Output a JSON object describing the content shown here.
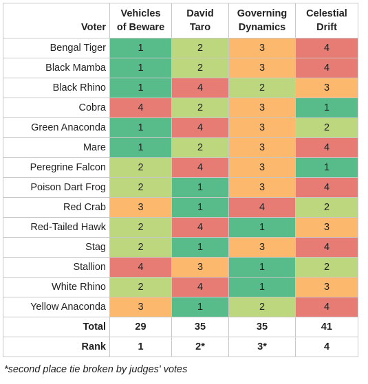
{
  "header": {
    "voter": "Voter",
    "candidates": [
      [
        "Vehicles",
        "of Beware"
      ],
      [
        "David",
        "Taro"
      ],
      [
        "Governing",
        "Dynamics"
      ],
      [
        "Celestial",
        "Drift"
      ]
    ]
  },
  "rows": [
    {
      "voter": "Bengal Tiger",
      "scores": [
        1,
        2,
        3,
        4
      ]
    },
    {
      "voter": "Black Mamba",
      "scores": [
        1,
        2,
        3,
        4
      ]
    },
    {
      "voter": "Black Rhino",
      "scores": [
        1,
        4,
        2,
        3
      ]
    },
    {
      "voter": "Cobra",
      "scores": [
        4,
        2,
        3,
        1
      ]
    },
    {
      "voter": "Green Anaconda",
      "scores": [
        1,
        4,
        3,
        2
      ]
    },
    {
      "voter": "Mare",
      "scores": [
        1,
        2,
        3,
        4
      ]
    },
    {
      "voter": "Peregrine Falcon",
      "scores": [
        2,
        4,
        3,
        1
      ]
    },
    {
      "voter": "Poison Dart Frog",
      "scores": [
        2,
        1,
        3,
        4
      ]
    },
    {
      "voter": "Red Crab",
      "scores": [
        3,
        1,
        4,
        2
      ]
    },
    {
      "voter": "Red-Tailed Hawk",
      "scores": [
        2,
        4,
        1,
        3
      ]
    },
    {
      "voter": "Stag",
      "scores": [
        2,
        1,
        3,
        4
      ]
    },
    {
      "voter": "Stallion",
      "scores": [
        4,
        3,
        1,
        2
      ]
    },
    {
      "voter": "White Rhino",
      "scores": [
        2,
        4,
        1,
        3
      ]
    },
    {
      "voter": "Yellow Anaconda",
      "scores": [
        3,
        1,
        2,
        4
      ]
    }
  ],
  "total": {
    "label": "Total",
    "values": [
      "29",
      "35",
      "35",
      "41"
    ]
  },
  "rank": {
    "label": "Rank",
    "values": [
      "1",
      "2*",
      "3*",
      "4"
    ]
  },
  "footnote": "*second place tie broken by judges' votes",
  "colors": {
    "1": "#57bb8a",
    "2": "#bdd77e",
    "3": "#fcb86c",
    "4": "#e67c73"
  }
}
